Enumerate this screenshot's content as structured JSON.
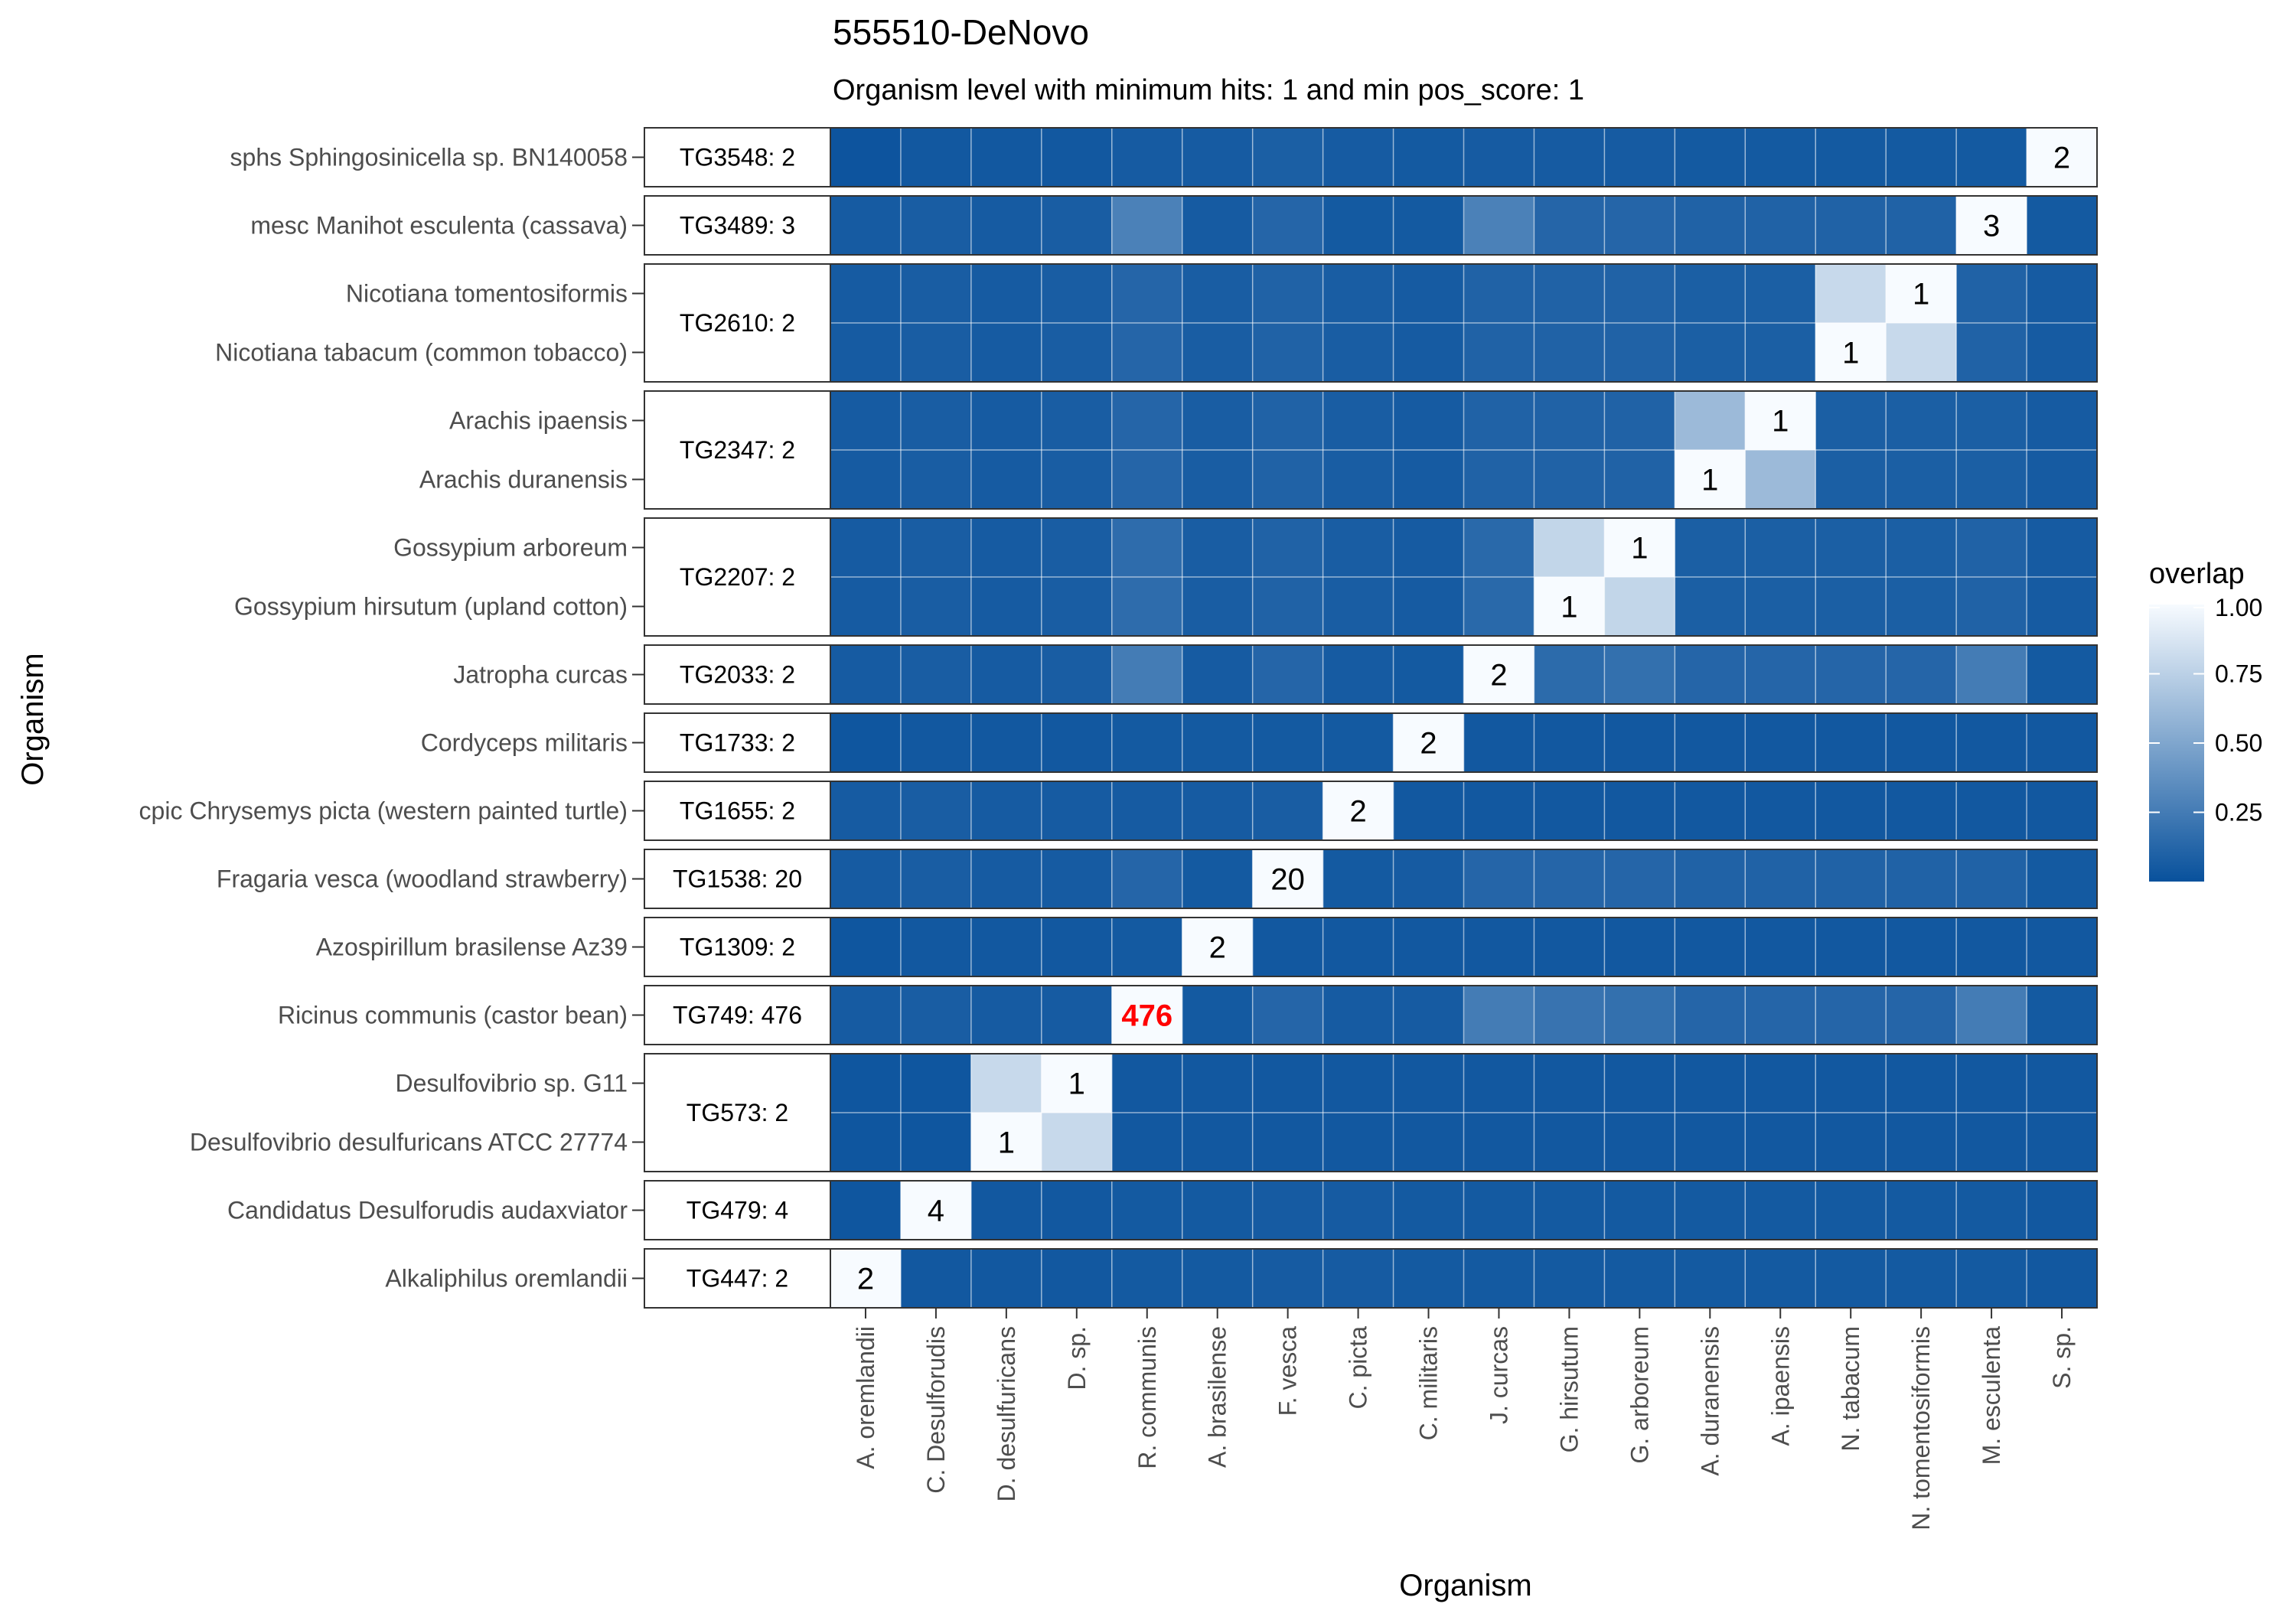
{
  "chart_data": {
    "type": "heatmap",
    "title": "555510-DeNovo",
    "subtitle": "Organism level with minimum hits: 1 and min pos_score: 1",
    "xlabel": "Organism",
    "ylabel": "Organism",
    "columns": [
      "A. oremlandii",
      "C. Desulforudis",
      "D. desulfuricans",
      "D. sp.",
      "R. communis",
      "A. brasilense",
      "F. vesca",
      "C. picta",
      "C. militaris",
      "J. curcas",
      "G. hirsutum",
      "G. arboreum",
      "A. duranensis",
      "A. ipaensis",
      "N. tabacum",
      "N. tomentosiformis",
      "M. esculenta",
      "S. sp."
    ],
    "legend": {
      "title": "overlap",
      "ticks": [
        "1.00",
        "0.75",
        "0.50",
        "0.25"
      ],
      "tick_values": [
        1.0,
        0.75,
        0.5,
        0.25
      ],
      "range": [
        0,
        1
      ],
      "low_color": "#08519c",
      "high_color": "#f7fbff"
    },
    "highlight_color": "#ff0000",
    "groups": [
      {
        "label": "TG3548:   2",
        "rows": [
          {
            "name": "sphs  Sphingosinicella sp. BN140058",
            "values": [
              0.02,
              0.04,
              0.04,
              0.04,
              0.06,
              0.06,
              0.08,
              0.06,
              0.05,
              0.06,
              0.06,
              0.06,
              0.05,
              0.05,
              0.05,
              0.05,
              0.05,
              1.0
            ],
            "labels": {
              "17": "2"
            }
          }
        ]
      },
      {
        "label": "TG3489:   3",
        "rows": [
          {
            "name": "mesc  Manihot esculenta (cassava)",
            "values": [
              0.06,
              0.07,
              0.06,
              0.07,
              0.28,
              0.06,
              0.12,
              0.05,
              0.05,
              0.28,
              0.12,
              0.12,
              0.1,
              0.1,
              0.1,
              0.1,
              1.0,
              0.05
            ],
            "labels": {
              "16": "3"
            }
          }
        ]
      },
      {
        "label": "TG2610:   2",
        "rows": [
          {
            "name": "Nicotiana tomentosiformis",
            "values": [
              0.06,
              0.07,
              0.06,
              0.07,
              0.12,
              0.07,
              0.1,
              0.07,
              0.06,
              0.1,
              0.1,
              0.1,
              0.08,
              0.08,
              0.8,
              1.0,
              0.1,
              0.06
            ],
            "labels": {
              "15": "1"
            }
          },
          {
            "name": "Nicotiana tabacum (common tobacco)",
            "values": [
              0.06,
              0.07,
              0.06,
              0.07,
              0.12,
              0.07,
              0.1,
              0.07,
              0.06,
              0.1,
              0.1,
              0.1,
              0.08,
              0.08,
              1.0,
              0.8,
              0.1,
              0.06
            ],
            "labels": {
              "14": "1"
            }
          }
        ]
      },
      {
        "label": "TG2347:   2",
        "rows": [
          {
            "name": "Arachis ipaensis",
            "values": [
              0.06,
              0.07,
              0.06,
              0.07,
              0.12,
              0.07,
              0.1,
              0.07,
              0.06,
              0.1,
              0.1,
              0.1,
              0.62,
              1.0,
              0.08,
              0.08,
              0.08,
              0.06
            ],
            "labels": {
              "13": "1"
            }
          },
          {
            "name": "Arachis duranensis",
            "values": [
              0.06,
              0.07,
              0.06,
              0.07,
              0.12,
              0.07,
              0.1,
              0.07,
              0.06,
              0.1,
              0.1,
              0.1,
              1.0,
              0.62,
              0.08,
              0.08,
              0.08,
              0.06
            ],
            "labels": {
              "12": "1"
            }
          }
        ]
      },
      {
        "label": "TG2207:   2",
        "rows": [
          {
            "name": "Gossypium arboreum",
            "values": [
              0.06,
              0.07,
              0.06,
              0.07,
              0.16,
              0.07,
              0.1,
              0.07,
              0.06,
              0.14,
              0.78,
              1.0,
              0.08,
              0.08,
              0.08,
              0.08,
              0.1,
              0.06
            ],
            "labels": {
              "11": "1"
            }
          },
          {
            "name": "Gossypium hirsutum (upland cotton)",
            "values": [
              0.06,
              0.07,
              0.06,
              0.07,
              0.16,
              0.07,
              0.1,
              0.07,
              0.06,
              0.14,
              1.0,
              0.78,
              0.08,
              0.08,
              0.08,
              0.08,
              0.1,
              0.06
            ],
            "labels": {
              "10": "1"
            }
          }
        ]
      },
      {
        "label": "TG2033:   2",
        "rows": [
          {
            "name": "Jatropha curcas",
            "values": [
              0.06,
              0.07,
              0.06,
              0.07,
              0.25,
              0.06,
              0.12,
              0.06,
              0.05,
              1.0,
              0.15,
              0.18,
              0.12,
              0.12,
              0.12,
              0.12,
              0.25,
              0.05
            ],
            "labels": {
              "9": "2"
            }
          }
        ]
      },
      {
        "label": "TG1733:   2",
        "rows": [
          {
            "name": "Cordyceps militaris",
            "values": [
              0.03,
              0.04,
              0.04,
              0.04,
              0.05,
              0.05,
              0.05,
              0.05,
              1.0,
              0.04,
              0.04,
              0.04,
              0.04,
              0.04,
              0.04,
              0.04,
              0.04,
              0.04
            ],
            "labels": {
              "8": "2"
            }
          }
        ]
      },
      {
        "label": "TG1655:   2",
        "rows": [
          {
            "name": "cpic  Chrysemys picta (western painted turtle)",
            "values": [
              0.06,
              0.07,
              0.06,
              0.06,
              0.06,
              0.06,
              0.07,
              1.0,
              0.04,
              0.04,
              0.04,
              0.04,
              0.04,
              0.04,
              0.04,
              0.04,
              0.04,
              0.04
            ],
            "labels": {
              "7": "2"
            }
          }
        ]
      },
      {
        "label": "TG1538:  20",
        "rows": [
          {
            "name": "Fragaria vesca (woodland strawberry)",
            "values": [
              0.06,
              0.07,
              0.06,
              0.06,
              0.12,
              0.05,
              1.0,
              0.05,
              0.06,
              0.12,
              0.12,
              0.12,
              0.1,
              0.1,
              0.1,
              0.1,
              0.1,
              0.05
            ],
            "labels": {
              "6": "20"
            }
          }
        ]
      },
      {
        "label": "TG1309:   2",
        "rows": [
          {
            "name": "Azospirillum brasilense Az39",
            "values": [
              0.03,
              0.04,
              0.04,
              0.04,
              0.05,
              1.0,
              0.04,
              0.04,
              0.04,
              0.04,
              0.04,
              0.04,
              0.04,
              0.04,
              0.04,
              0.04,
              0.04,
              0.04
            ],
            "labels": {
              "5": "2"
            }
          }
        ]
      },
      {
        "label": "TG749: 476",
        "rows": [
          {
            "name": "Ricinus communis (castor bean)",
            "values": [
              0.06,
              0.07,
              0.06,
              0.06,
              1.0,
              0.05,
              0.12,
              0.06,
              0.06,
              0.25,
              0.2,
              0.18,
              0.12,
              0.12,
              0.12,
              0.12,
              0.25,
              0.05
            ],
            "labels": {
              "4": "476"
            },
            "highlight": [
              4
            ]
          }
        ]
      },
      {
        "label": "TG573:   2",
        "rows": [
          {
            "name": "Desulfovibrio sp. G11",
            "values": [
              0.03,
              0.03,
              0.8,
              1.0,
              0.04,
              0.04,
              0.04,
              0.04,
              0.04,
              0.04,
              0.04,
              0.04,
              0.04,
              0.04,
              0.04,
              0.04,
              0.04,
              0.04
            ],
            "labels": {
              "3": "1"
            }
          },
          {
            "name": "Desulfovibrio desulfuricans ATCC 27774",
            "values": [
              0.03,
              0.03,
              1.0,
              0.8,
              0.04,
              0.04,
              0.04,
              0.04,
              0.04,
              0.04,
              0.04,
              0.04,
              0.04,
              0.04,
              0.04,
              0.04,
              0.04,
              0.04
            ],
            "labels": {
              "2": "1"
            }
          }
        ]
      },
      {
        "label": "TG479:   4",
        "rows": [
          {
            "name": "Candidatus Desulforudis audaxviator",
            "values": [
              0.03,
              1.0,
              0.04,
              0.04,
              0.05,
              0.05,
              0.06,
              0.06,
              0.05,
              0.05,
              0.05,
              0.05,
              0.05,
              0.05,
              0.05,
              0.05,
              0.05,
              0.04
            ],
            "labels": {
              "1": "4"
            }
          }
        ]
      },
      {
        "label": "TG447:   2",
        "rows": [
          {
            "name": "Alkaliphilus oremlandii",
            "values": [
              1.0,
              0.04,
              0.04,
              0.04,
              0.05,
              0.05,
              0.06,
              0.06,
              0.05,
              0.05,
              0.05,
              0.05,
              0.05,
              0.05,
              0.05,
              0.05,
              0.05,
              0.04
            ],
            "labels": {
              "0": "2"
            }
          }
        ]
      }
    ]
  }
}
